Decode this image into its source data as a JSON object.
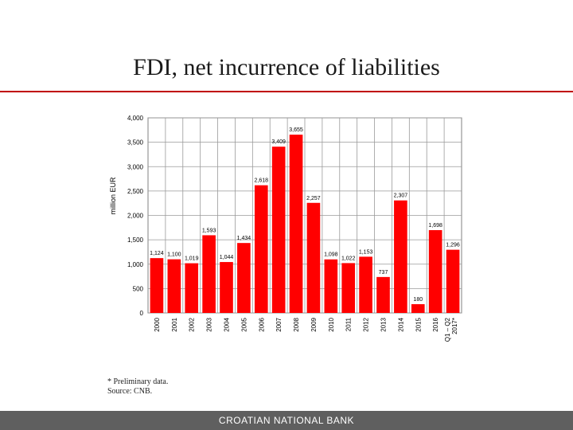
{
  "page": {
    "title": "FDI, net incurrence of liabilities",
    "footnote_1": "* Preliminary data.",
    "footnote_2": "Source: CNB.",
    "footer": "CROATIAN NATIONAL BANK"
  },
  "chart_data": {
    "type": "bar",
    "categories": [
      "2000",
      "2001",
      "2002",
      "2003",
      "2004",
      "2005",
      "2006",
      "2007",
      "2008",
      "2009",
      "2010",
      "2011",
      "2012",
      "2013",
      "2014",
      "2015",
      "2016",
      "Q1 – Q2 2017*"
    ],
    "values": [
      1124,
      1100,
      1019,
      1593,
      1044,
      1434,
      2618,
      3409,
      3655,
      2257,
      1098,
      1022,
      1153,
      737,
      2307,
      180,
      1698,
      1296
    ],
    "value_labels": [
      "1,124",
      "1,100",
      "1,019",
      "1,593",
      "1,044",
      "1,434",
      "2,618",
      "3,409",
      "3,655",
      "2,257",
      "1,098",
      "1,022",
      "1,153",
      "737",
      "2,307",
      "180",
      "1,698",
      "1,296"
    ],
    "ylabel": "million EUR",
    "ylim": [
      0,
      4000
    ],
    "yticks": [
      0,
      500,
      1000,
      1500,
      2000,
      2500,
      3000,
      3500,
      4000
    ],
    "ytick_labels": [
      "0",
      "500",
      "1,000",
      "1,500",
      "2,000",
      "2,500",
      "3,000",
      "3,500",
      "4,000"
    ],
    "grid": true,
    "bar_color": "#ff0000"
  }
}
